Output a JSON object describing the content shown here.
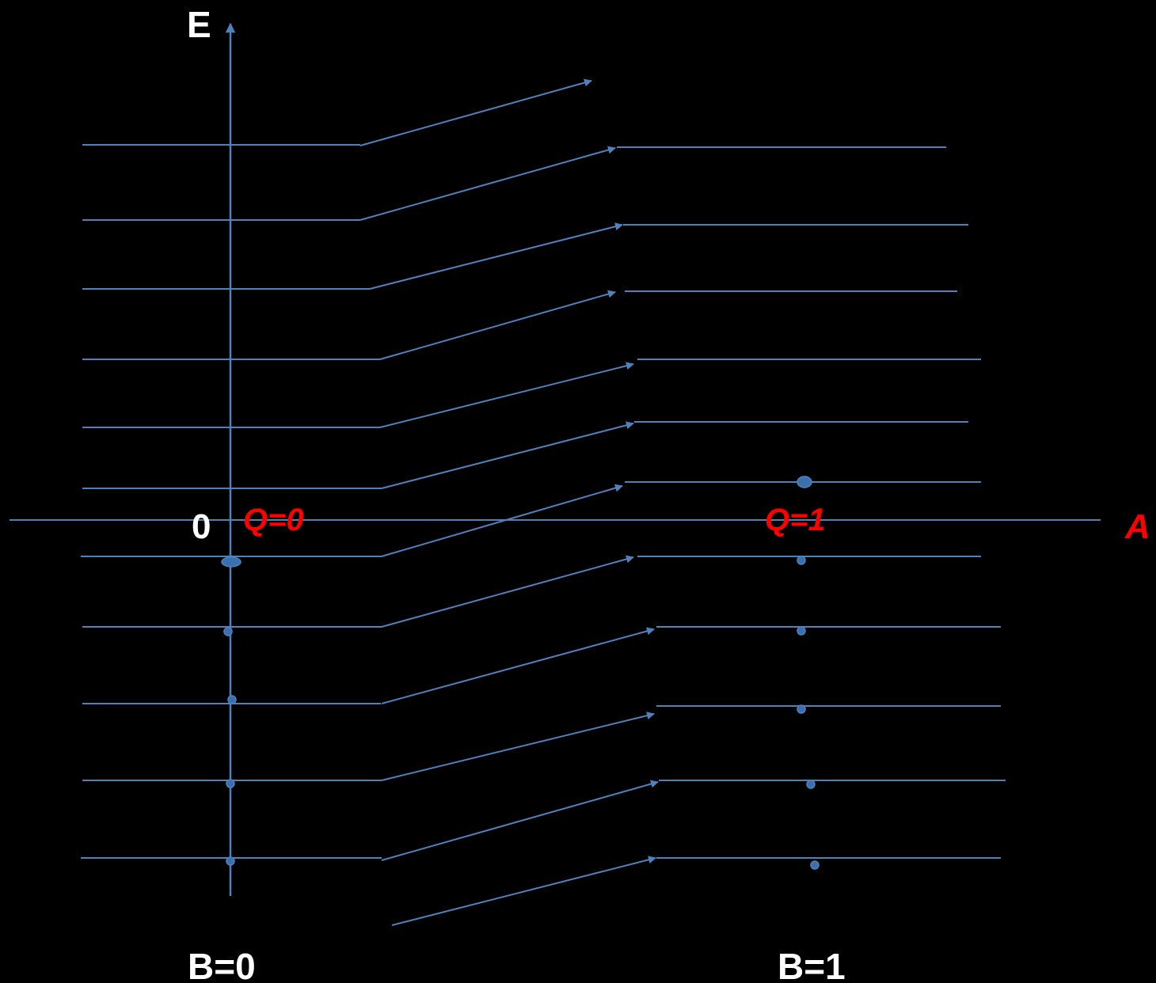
{
  "labels": {
    "energy_axis": "E",
    "origin": "0",
    "a_axis": "A",
    "q_left": "Q=0",
    "q_right": "Q=1",
    "b_left": "B=0",
    "b_right": "B=1"
  },
  "colors": {
    "background": "#000000",
    "line": "#4f81bd",
    "dot": "#3a6fb0",
    "label_white": "#ffffff",
    "label_red": "#ff0000"
  },
  "left_levels": 11,
  "right_levels": 11,
  "transition_arrows": 12,
  "occupied_dots": {
    "left": 5,
    "right": 6
  }
}
